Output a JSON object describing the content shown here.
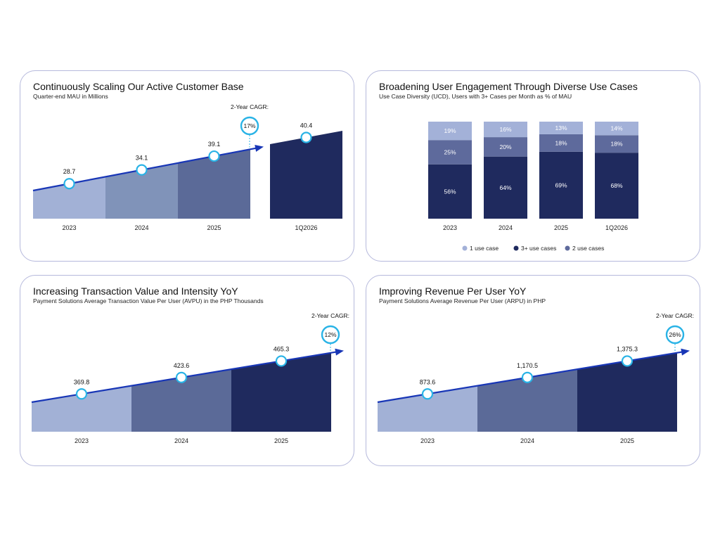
{
  "colors": {
    "shade1": "#a2b1d6",
    "shade2": "#8093b9",
    "shade3": "#5b6a98",
    "navy": "#1f2a5e",
    "arrow": "#1836b6",
    "marker": "#29b3e6",
    "seg_light": "#a3b1d8",
    "seg_mid": "#5e6a9c",
    "seg_dark": "#1f2a5e"
  },
  "charts": {
    "mau": {
      "title": "Continuously Scaling Our Active Customer Base",
      "subtitle": "Quarter-end MAU in Millions",
      "cagr_label": "2-Year CAGR:",
      "cagr_value": "17%"
    },
    "ucd": {
      "title": "Broadening User Engagement Through Diverse Use Cases",
      "subtitle": "Use Case Diversity (UCD), Users with 3+ Cases per Month as % of MAU"
    },
    "avpu": {
      "title": "Increasing Transaction Value and Intensity YoY",
      "subtitle": "Payment Solutions Average Transaction Value Per User (AVPU) in the PHP Thousands",
      "cagr_label": "2-Year CAGR:",
      "cagr_value": "12%"
    },
    "arpu": {
      "title": "Improving Revenue Per User YoY",
      "subtitle": "Payment Solutions Average Revenue Per User (ARPU) in PHP",
      "cagr_label": "2-Year CAGR:",
      "cagr_value": "26%"
    }
  },
  "chart_data": [
    {
      "type": "area",
      "categories": [
        "2023",
        "2024",
        "2025",
        "1Q2026"
      ],
      "values": [
        28.7,
        34.1,
        39.1,
        40.4
      ],
      "value_labels": [
        "28.7",
        "34.1",
        "39.1",
        "40.4"
      ]
    },
    {
      "type": "bar",
      "stacked": true,
      "categories": [
        "2023",
        "2024",
        "2025",
        "1Q2026"
      ],
      "series": [
        {
          "name": "3+ use cases",
          "values": [
            56,
            64,
            69,
            68
          ]
        },
        {
          "name": "2 use cases",
          "values": [
            25,
            20,
            18,
            18
          ]
        },
        {
          "name": "1 use case",
          "values": [
            19,
            16,
            13,
            14
          ]
        }
      ],
      "legend": [
        "1 use case",
        "3+ use cases",
        "2 use cases"
      ],
      "legend_position": "bottom"
    },
    {
      "type": "area",
      "categories": [
        "2023",
        "2024",
        "2025"
      ],
      "values": [
        369.8,
        423.6,
        465.3
      ],
      "value_labels": [
        "369.8",
        "423.6",
        "465.3"
      ]
    },
    {
      "type": "area",
      "categories": [
        "2023",
        "2024",
        "2025"
      ],
      "values": [
        873.6,
        1170.5,
        1375.3
      ],
      "value_labels": [
        "873.6",
        "1,170.5",
        "1,375.3"
      ]
    }
  ]
}
